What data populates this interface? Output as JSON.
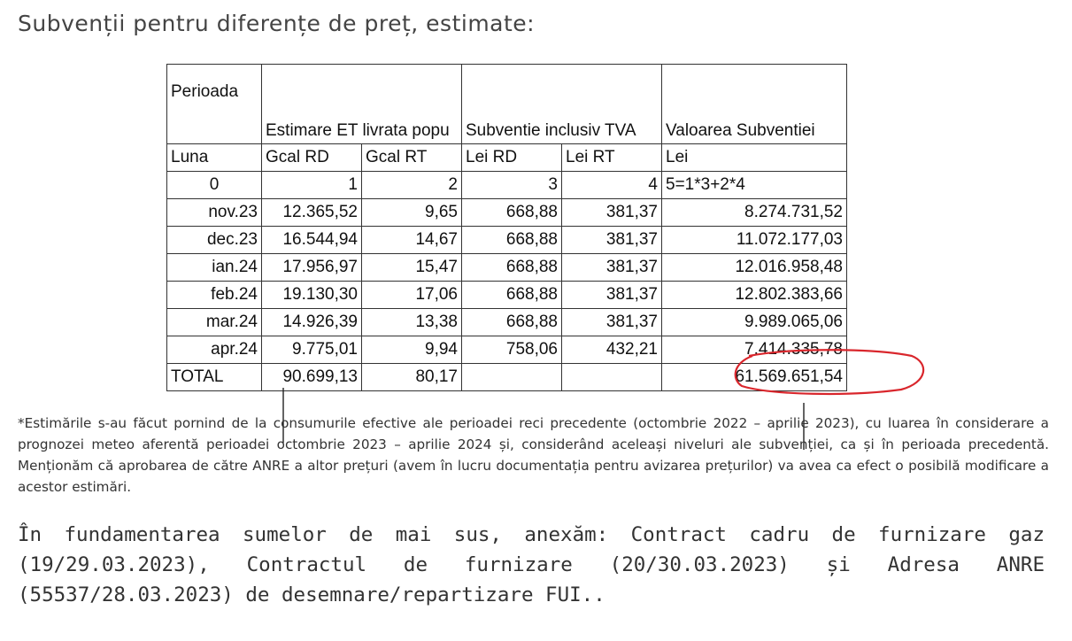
{
  "document": {
    "title": "Subvenții pentru diferențe de preț, estimate:",
    "table": {
      "header_row1": [
        "Perioada",
        "Estimare ET livrata popu",
        "Subventie inclusiv TVA",
        "Valoarea Subventiei"
      ],
      "header_row2": [
        "Luna",
        "Gcal RD",
        "Gcal RT",
        "Lei RD",
        "Lei RT",
        "Lei"
      ],
      "header_row3": [
        "0",
        "1",
        "2",
        "3",
        "4",
        "5=1*3+2*4"
      ],
      "rows": [
        [
          "nov.23",
          "12.365,52",
          "9,65",
          "668,88",
          "381,37",
          "8.274.731,52"
        ],
        [
          "dec.23",
          "16.544,94",
          "14,67",
          "668,88",
          "381,37",
          "11.072.177,03"
        ],
        [
          "ian.24",
          "17.956,97",
          "15,47",
          "668,88",
          "381,37",
          "12.016.958,48"
        ],
        [
          "feb.24",
          "19.130,30",
          "17,06",
          "668,88",
          "381,37",
          "12.802.383,66"
        ],
        [
          "mar.24",
          "14.926,39",
          "13,38",
          "668,88",
          "381,37",
          "9.989.065,06"
        ],
        [
          "apr.24",
          "9.775,01",
          "9,94",
          "758,06",
          "432,21",
          "7.414.335,78"
        ]
      ],
      "total_row": [
        "TOTAL",
        "90.699,13",
        "80,17",
        "",
        "",
        "61.569.651,54"
      ]
    },
    "footnote": "*Estimările s-au făcut pornind de la consumurile efective ale perioadei reci precedente (octombrie 2022 – aprilie 2023), cu luarea în considerare a prognozei meteo aferentă perioadei octombrie 2023 – aprilie 2024 și, considerând aceleași niveluri ale subvenției, ca și în perioada precedentă. Menționăm că aprobarea de către ANRE a altor prețuri (avem în lucru documentația pentru avizarea prețurilor) va avea ca efect o posibilă modificare a acestor estimări.",
    "paragraph": "În fundamentarea sumelor de mai sus, anexăm: Contract cadru de furnizare gaz (19/29.03.2023), Contractul de furnizare (20/30.03.2023) și Adresa ANRE (55537/28.03.2023) de desemnare/repartizare FUI..",
    "annotation_color": "#d9262c"
  }
}
